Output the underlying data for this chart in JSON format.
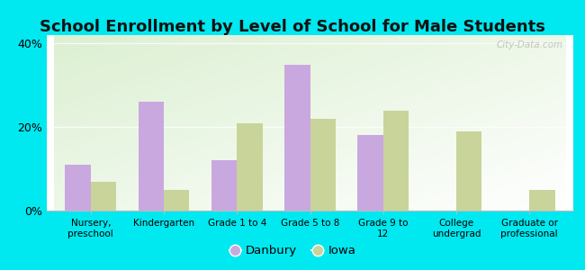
{
  "title": "School Enrollment by Level of School for Male Students",
  "categories": [
    "Nursery,\npreschool",
    "Kindergarten",
    "Grade 1 to 4",
    "Grade 5 to 8",
    "Grade 9 to\n12",
    "College\nundergrad",
    "Graduate or\nprofessional"
  ],
  "danbury": [
    11,
    26,
    12,
    35,
    18,
    0,
    0
  ],
  "iowa": [
    7,
    5,
    21,
    22,
    24,
    19,
    5
  ],
  "danbury_color": "#c9a8e0",
  "iowa_color": "#c9d49a",
  "background_outer": "#00e8f0",
  "ylim": [
    0,
    42
  ],
  "yticks": [
    0,
    20,
    40
  ],
  "ytick_labels": [
    "0%",
    "20%",
    "40%"
  ],
  "bar_width": 0.35,
  "legend_danbury": "Danbury",
  "legend_iowa": "Iowa",
  "watermark": "City-Data.com",
  "title_fontsize": 13,
  "title_color": "#111111"
}
